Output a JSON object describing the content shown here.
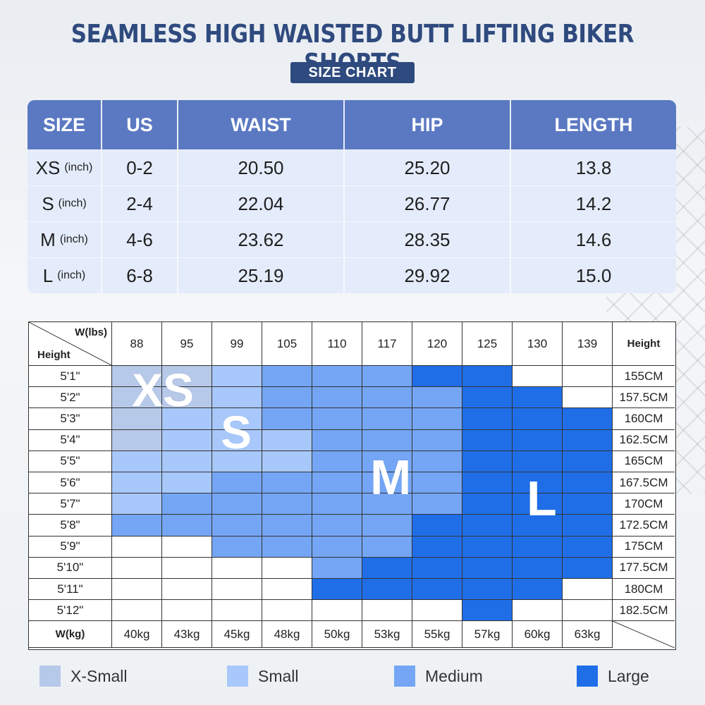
{
  "title": "SEAMLESS HIGH WAISTED BUTT LIFTING BIKER SHORTS",
  "badge": "SIZE CHART",
  "size_table": {
    "headers": [
      "SIZE",
      "US",
      "WAIST",
      "HIP",
      "LENGTH"
    ],
    "unit": "(inch)",
    "rows": [
      {
        "size": "XS",
        "us": "0-2",
        "waist": "20.50",
        "hip": "25.20",
        "length": "13.8"
      },
      {
        "size": "S",
        "us": "2-4",
        "waist": "22.04",
        "hip": "26.77",
        "length": "14.2"
      },
      {
        "size": "M",
        "us": "4-6",
        "waist": "23.62",
        "hip": "28.35",
        "length": "14.6"
      },
      {
        "size": "L",
        "us": "6-8",
        "waist": "25.19",
        "hip": "29.92",
        "length": "15.0"
      }
    ]
  },
  "grid": {
    "corner_weight_label": "W(lbs)",
    "corner_height_label": "Height",
    "right_header": "Height",
    "weights_lbs": [
      "88",
      "95",
      "99",
      "105",
      "110",
      "117",
      "120",
      "125",
      "130",
      "139"
    ],
    "weights_kg": [
      "40kg",
      "43kg",
      "45kg",
      "48kg",
      "50kg",
      "53kg",
      "55kg",
      "57kg",
      "60kg",
      "63kg"
    ],
    "kg_label": "W(kg)",
    "heights_ft": [
      "5'1\"",
      "5'2\"",
      "5'3\"",
      "5'4\"",
      "5'5\"",
      "5'6\"",
      "5'7\"",
      "5'8\"",
      "5'9\"",
      "5'10\"",
      "5'11\"",
      "5'12\""
    ],
    "heights_cm": [
      "155CM",
      "157.5CM",
      "160CM",
      "162.5CM",
      "165CM",
      "167.5CM",
      "170CM",
      "172.5CM",
      "175CM",
      "177.5CM",
      "180CM",
      "182.5CM"
    ],
    "cells": [
      [
        "XS",
        "XS",
        "S",
        "M",
        "M",
        "M",
        "L",
        "L",
        "",
        ""
      ],
      [
        "XS",
        "XS",
        "S",
        "M",
        "M",
        "M",
        "M",
        "L",
        "L",
        ""
      ],
      [
        "XS",
        "S",
        "S",
        "M",
        "M",
        "M",
        "M",
        "L",
        "L",
        "L"
      ],
      [
        "XS",
        "S",
        "S",
        "S",
        "M",
        "M",
        "M",
        "L",
        "L",
        "L"
      ],
      [
        "S",
        "S",
        "S",
        "S",
        "M",
        "M",
        "M",
        "L",
        "L",
        "L"
      ],
      [
        "S",
        "S",
        "M",
        "M",
        "M",
        "M",
        "M",
        "L",
        "L",
        "L"
      ],
      [
        "S",
        "M",
        "M",
        "M",
        "M",
        "M",
        "M",
        "L",
        "L",
        "L"
      ],
      [
        "M",
        "M",
        "M",
        "M",
        "M",
        "M",
        "L",
        "L",
        "L",
        "L"
      ],
      [
        "",
        "",
        "M",
        "M",
        "M",
        "M",
        "L",
        "L",
        "L",
        "L"
      ],
      [
        "",
        "",
        "",
        "",
        "M",
        "L",
        "L",
        "L",
        "L",
        "L"
      ],
      [
        "",
        "",
        "",
        "",
        "L",
        "L",
        "L",
        "L",
        "L",
        ""
      ],
      [
        "",
        "",
        "",
        "",
        "",
        "",
        "",
        "L",
        "",
        ""
      ]
    ],
    "zone_labels": {
      "xs": "XS",
      "s": "S",
      "m": "M",
      "l": "L"
    }
  },
  "colors": {
    "XS": "#b7c9e9",
    "S": "#a8c8fb",
    "M": "#74a6f5",
    "L": "#1f6ee8"
  },
  "legend": [
    {
      "key": "XS",
      "label": "X-Small"
    },
    {
      "key": "S",
      "label": "Small"
    },
    {
      "key": "M",
      "label": "Medium"
    },
    {
      "key": "L",
      "label": "Large"
    }
  ]
}
